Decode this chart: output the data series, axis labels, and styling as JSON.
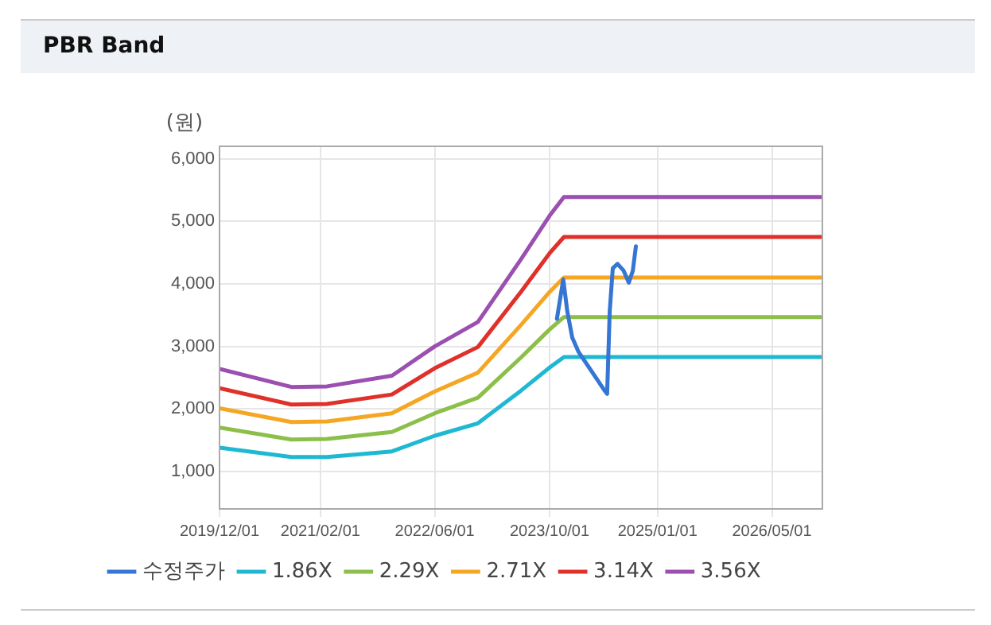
{
  "chart_data": {
    "type": "line",
    "title": "PBR Band",
    "ylabel": "(원)",
    "xlim": [
      "2019-12-01",
      "2026-12-01"
    ],
    "xticks": [
      {
        "value": "2019-12-01",
        "label": "2019/12/01"
      },
      {
        "value": "2021-02-01",
        "label": "2021/02/01"
      },
      {
        "value": "2022-06-01",
        "label": "2022/06/01"
      },
      {
        "value": "2023-10-01",
        "label": "2023/10/01"
      },
      {
        "value": "2025-01-01",
        "label": "2025/01/01"
      },
      {
        "value": "2026-05-01",
        "label": "2026/05/01"
      }
    ],
    "ylim": [
      400,
      6200
    ],
    "yticks": [
      {
        "value": 1000,
        "label": "1,000"
      },
      {
        "value": 2000,
        "label": "2,000"
      },
      {
        "value": 3000,
        "label": "3,000"
      },
      {
        "value": 4000,
        "label": "4,000"
      },
      {
        "value": 5000,
        "label": "5,000"
      },
      {
        "value": 6000,
        "label": "6,000"
      }
    ],
    "grid": true,
    "legend": "bottom",
    "marker": "none",
    "line_style": "solid",
    "series": [
      {
        "name": "수정주가",
        "color": "#3575d3",
        "x": [
          "2023-11-01",
          "2023-11-10",
          "2023-11-28",
          "2023-12-15",
          "2024-01-05",
          "2024-02-01",
          "2024-05-20",
          "2024-06-01",
          "2024-06-12",
          "2024-06-25",
          "2024-07-15",
          "2024-08-10",
          "2024-09-01",
          "2024-09-18",
          "2024-10-01"
        ],
        "values": [
          3440,
          3650,
          4070,
          3560,
          3140,
          2910,
          2300,
          2240,
          3560,
          4250,
          4320,
          4210,
          4020,
          4210,
          4600
        ]
      },
      {
        "name": "1.86X",
        "color": "#1fb8d3",
        "x": [
          "2019-12-01",
          "2020-10-01",
          "2021-03-01",
          "2021-12-01",
          "2022-06-01",
          "2022-12-01",
          "2023-06-01",
          "2023-10-01",
          "2023-12-01",
          "2026-12-01"
        ],
        "values": [
          1380,
          1230,
          1230,
          1320,
          1570,
          1770,
          2290,
          2660,
          2830,
          2830
        ]
      },
      {
        "name": "2.29X",
        "color": "#8cbf4a",
        "x": [
          "2019-12-01",
          "2020-10-01",
          "2021-03-01",
          "2021-12-01",
          "2022-06-01",
          "2022-12-01",
          "2023-06-01",
          "2023-10-01",
          "2023-12-01",
          "2026-12-01"
        ],
        "values": [
          1700,
          1510,
          1520,
          1630,
          1930,
          2180,
          2820,
          3270,
          3470,
          3470
        ]
      },
      {
        "name": "2.71X",
        "color": "#f5a623",
        "x": [
          "2019-12-01",
          "2020-10-01",
          "2021-03-01",
          "2021-12-01",
          "2022-06-01",
          "2022-12-01",
          "2023-06-01",
          "2023-10-01",
          "2023-12-01",
          "2026-12-01"
        ],
        "values": [
          2010,
          1790,
          1800,
          1930,
          2280,
          2580,
          3340,
          3870,
          4100,
          4100
        ]
      },
      {
        "name": "3.14X",
        "color": "#e0302a",
        "x": [
          "2019-12-01",
          "2020-10-01",
          "2021-03-01",
          "2021-12-01",
          "2022-06-01",
          "2022-12-01",
          "2023-06-01",
          "2023-10-01",
          "2023-12-01",
          "2026-12-01"
        ],
        "values": [
          2330,
          2070,
          2080,
          2230,
          2650,
          2990,
          3870,
          4490,
          4750,
          4750
        ]
      },
      {
        "name": "3.56X",
        "color": "#9b4fb0",
        "x": [
          "2019-12-01",
          "2020-10-01",
          "2021-03-01",
          "2021-12-01",
          "2022-06-01",
          "2022-12-01",
          "2023-06-01",
          "2023-10-01",
          "2023-12-01",
          "2026-12-01"
        ],
        "values": [
          2640,
          2350,
          2360,
          2530,
          3000,
          3390,
          4390,
          5090,
          5390,
          5390
        ]
      }
    ]
  }
}
